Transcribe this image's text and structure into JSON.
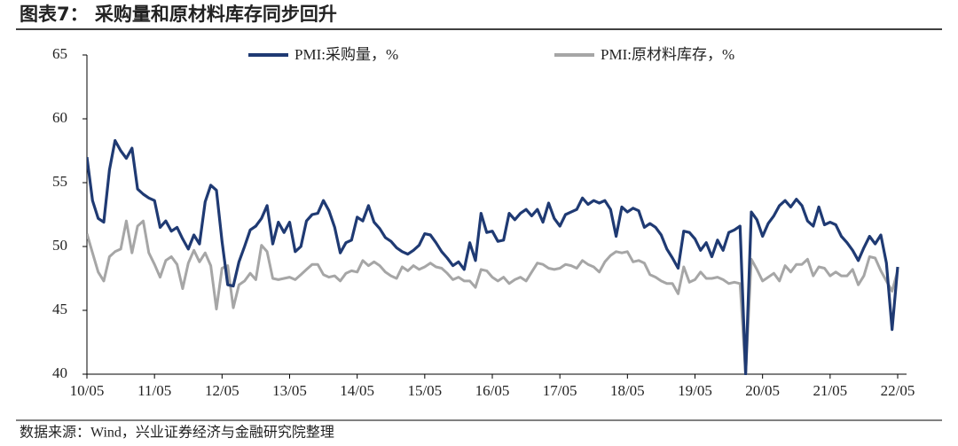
{
  "chart_data": {
    "type": "line",
    "title": "图表7：  采购量和原材料库存同步回升",
    "source": "数据来源：Wind，兴业证券经济与金融研究院整理",
    "categories": [
      "10/05",
      null,
      null,
      null,
      null,
      null,
      null,
      null,
      null,
      null,
      null,
      null,
      "11/05",
      null,
      null,
      null,
      null,
      null,
      null,
      null,
      null,
      null,
      null,
      null,
      "12/05",
      null,
      null,
      null,
      null,
      null,
      null,
      null,
      null,
      null,
      null,
      null,
      "13/05",
      null,
      null,
      null,
      null,
      null,
      null,
      null,
      null,
      null,
      null,
      null,
      "14/05",
      null,
      null,
      null,
      null,
      null,
      null,
      null,
      null,
      null,
      null,
      null,
      "15/05",
      null,
      null,
      null,
      null,
      null,
      null,
      null,
      null,
      null,
      null,
      null,
      "16/05",
      null,
      null,
      null,
      null,
      null,
      null,
      null,
      null,
      null,
      null,
      null,
      "17/05",
      null,
      null,
      null,
      null,
      null,
      null,
      null,
      null,
      null,
      null,
      null,
      "18/05",
      null,
      null,
      null,
      null,
      null,
      null,
      null,
      null,
      null,
      null,
      null,
      "19/05",
      null,
      null,
      null,
      null,
      null,
      null,
      null,
      null,
      null,
      null,
      null,
      "20/05",
      null,
      null,
      null,
      null,
      null,
      null,
      null,
      null,
      null,
      null,
      null,
      "21/05",
      null,
      null,
      null,
      null,
      null,
      null,
      null,
      null,
      null,
      null,
      null,
      "22/05"
    ],
    "series": [
      {
        "name": "PMI:采购量，%",
        "color": "#1f3a73",
        "values": [
          57,
          53.6,
          52.2,
          51.9,
          56,
          58.3,
          57.5,
          56.9,
          57.7,
          54.5,
          54.1,
          53.8,
          53.6,
          51.5,
          52,
          51.2,
          51.5,
          50.6,
          49.8,
          50.9,
          50.2,
          53.5,
          54.8,
          54.4,
          50.4,
          47,
          46.9,
          48.8,
          50,
          51.3,
          51.6,
          52.2,
          53.2,
          50.2,
          51.9,
          51.1,
          51.9,
          49.6,
          50,
          52,
          52.5,
          52.6,
          53.6,
          52.8,
          51.5,
          49.5,
          50.3,
          50.5,
          52.3,
          52,
          53.2,
          51.9,
          51.4,
          50.7,
          50.4,
          49.9,
          49.6,
          49.4,
          49.7,
          50.1,
          51,
          50.9,
          50.3,
          49.6,
          49.1,
          48.5,
          48.8,
          48.2,
          50.3,
          48.9,
          52.6,
          51.1,
          51.2,
          50.4,
          50.5,
          52.6,
          52.1,
          52.6,
          52.9,
          52.4,
          52.9,
          51.9,
          53.4,
          52.2,
          51.6,
          52.5,
          52.7,
          52.9,
          53.8,
          53.3,
          53.6,
          53.4,
          53.6,
          52.9,
          50.8,
          53.1,
          52.7,
          53,
          52.8,
          51.5,
          51.8,
          51.5,
          50.9,
          49.8,
          49.1,
          48.3,
          51.2,
          51.1,
          50.6,
          49.7,
          50.3,
          49.2,
          50.5,
          49.7,
          51.1,
          51.3,
          51.6,
          40,
          52.7,
          52.1,
          50.8,
          51.8,
          52.4,
          53.2,
          53.6,
          53.1,
          53.7,
          53.2,
          52,
          51.6,
          53.1,
          51.7,
          51.9,
          51.7,
          50.8,
          50.3,
          49.7,
          48.9,
          49.9,
          50.8,
          50.2,
          50.9,
          48.7,
          43.5,
          48.4
        ]
      },
      {
        "name": "PMI:原材料库存，%",
        "color": "#a6a6a6",
        "values": [
          51,
          49.5,
          48,
          47.3,
          49.2,
          49.6,
          49.8,
          52,
          49.5,
          51.6,
          52,
          49.5,
          48.6,
          47.6,
          48.9,
          49.2,
          48.6,
          46.7,
          48.7,
          49.7,
          48.8,
          49.5,
          48.5,
          45.1,
          48.3,
          48.5,
          45.2,
          47,
          47.3,
          47.9,
          47.4,
          50.1,
          49.6,
          47.5,
          47.4,
          47.5,
          47.6,
          47.4,
          47.8,
          48.2,
          48.6,
          48.6,
          47.8,
          47.6,
          47.7,
          47.3,
          47.9,
          48.1,
          48,
          48.9,
          48.5,
          48.8,
          48.5,
          48,
          47.7,
          47.5,
          48.4,
          48.1,
          48.5,
          48.2,
          48.4,
          48.7,
          48.4,
          48.3,
          47.9,
          47.4,
          47.6,
          47.3,
          47.3,
          46.8,
          48.2,
          48.1,
          47.6,
          47.3,
          47.6,
          47.1,
          47.4,
          47.6,
          47.3,
          48,
          48.7,
          48.6,
          48.3,
          48.2,
          48.3,
          48.6,
          48.5,
          48.3,
          48.9,
          48.6,
          48.4,
          48,
          48.8,
          49.3,
          49.6,
          49.5,
          49.6,
          48.8,
          48.9,
          48.7,
          47.8,
          47.6,
          47.3,
          47.1,
          47.1,
          46.3,
          48.4,
          47.2,
          47.4,
          48,
          47.5,
          47.5,
          47.6,
          47.4,
          47.1,
          47.2,
          47.1,
          40,
          49,
          48.2,
          47.3,
          47.6,
          47.9,
          47.3,
          48.5,
          48,
          48.6,
          48.6,
          49,
          47.7,
          48.4,
          48.3,
          47.7,
          48,
          47.7,
          47.7,
          48.2,
          47,
          47.7,
          49.2,
          49.1,
          48.1,
          47.3,
          46.5,
          48.1
        ]
      }
    ],
    "ylim": [
      40,
      65
    ],
    "yticks": [
      40,
      45,
      50,
      55,
      60,
      65
    ],
    "legend": "top"
  }
}
